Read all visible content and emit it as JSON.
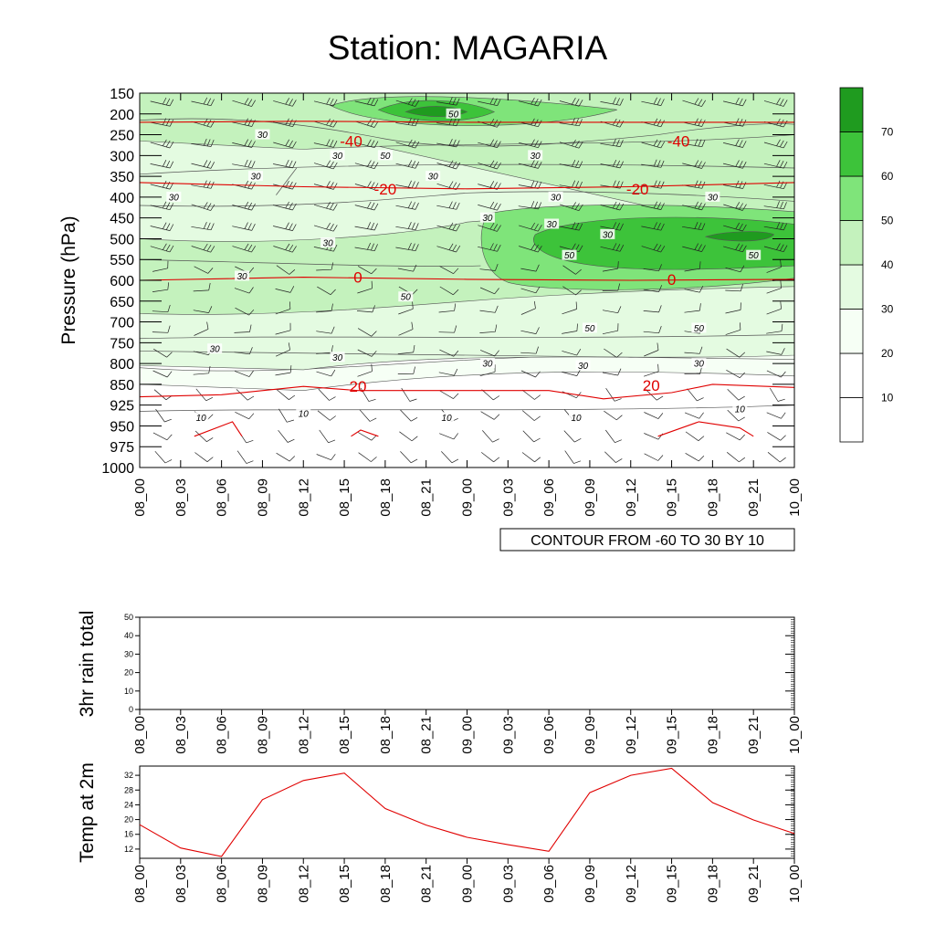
{
  "title": "Station: MAGARIA",
  "colors": {
    "temperature_line": "#e00000",
    "wind_barb": "#222222",
    "contour_line": "#555555",
    "shading": [
      "#ffffff",
      "#f6fff5",
      "#e4fbe1",
      "#c4f2bd",
      "#7fe47a",
      "#3dc33a",
      "#1f9b1f"
    ]
  },
  "chart_data": [
    {
      "type": "heatmap",
      "name": "cross-section",
      "title": "Station: MAGARIA",
      "ylabel": "Pressure (hPa)",
      "xlabel": "",
      "ylim": [
        1000,
        150
      ],
      "y_ticks": [
        "150",
        "200",
        "250",
        "300",
        "350",
        "400",
        "450",
        "500",
        "550",
        "600",
        "650",
        "700",
        "750",
        "800",
        "850",
        "925",
        "950",
        "975",
        "1000"
      ],
      "x_ticks": [
        "08_00",
        "08_03",
        "08_06",
        "08_09",
        "08_12",
        "08_15",
        "08_18",
        "08_21",
        "09_00",
        "09_03",
        "09_06",
        "09_09",
        "09_12",
        "09_15",
        "09_18",
        "09_21",
        "10_00"
      ],
      "shading_levels": [
        10,
        20,
        30,
        40,
        50,
        60,
        70
      ],
      "colorbar_labels": [
        "10",
        "20",
        "30",
        "40",
        "50",
        "60",
        "70"
      ],
      "wind_speed_contour_labels": [
        {
          "text": "30",
          "time": 9.0,
          "level": 2
        },
        {
          "text": "50",
          "time": 18.0,
          "level": 3
        },
        {
          "text": "50",
          "time": 23.0,
          "level": 1
        },
        {
          "text": "30",
          "time": 2.5,
          "level": 5
        },
        {
          "text": "30",
          "time": 8.5,
          "level": 4
        },
        {
          "text": "30",
          "time": 14.5,
          "level": 3
        },
        {
          "text": "30",
          "time": 21.5,
          "level": 4
        },
        {
          "text": "30",
          "time": 30.5,
          "level": 5
        },
        {
          "text": "30",
          "time": 29.0,
          "level": 3
        },
        {
          "text": "30",
          "time": 42.0,
          "level": 5
        },
        {
          "text": "30",
          "time": 25.5,
          "level": 6
        },
        {
          "text": "30",
          "time": 30.2,
          "level": 6.3
        },
        {
          "text": "30",
          "time": 34.3,
          "level": 6.8
        },
        {
          "text": "30",
          "time": 13.8,
          "level": 7.2
        },
        {
          "text": "50",
          "time": 31.5,
          "level": 7.8
        },
        {
          "text": "50",
          "time": 45.0,
          "level": 7.8
        },
        {
          "text": "30",
          "time": 7.5,
          "level": 8.8
        },
        {
          "text": "50",
          "time": 19.5,
          "level": 9.8
        },
        {
          "text": "50",
          "time": 33.0,
          "level": 11.3
        },
        {
          "text": "50",
          "time": 41.0,
          "level": 11.3
        },
        {
          "text": "30",
          "time": 5.5,
          "level": 12.3
        },
        {
          "text": "30",
          "time": 14.5,
          "level": 12.7
        },
        {
          "text": "30",
          "time": 25.5,
          "level": 13.0
        },
        {
          "text": "30",
          "time": 32.5,
          "level": 13.1
        },
        {
          "text": "30",
          "time": 41.0,
          "level": 13.0
        },
        {
          "text": "10",
          "time": 4.5,
          "level": 15.6
        },
        {
          "text": "10",
          "time": 12.0,
          "level": 15.4
        },
        {
          "text": "10",
          "time": 22.5,
          "level": 15.6
        },
        {
          "text": "10",
          "time": 32.0,
          "level": 15.6
        },
        {
          "text": "10",
          "time": 44.0,
          "level": 15.2
        }
      ],
      "temperature_contours": [
        {
          "value": "-40",
          "points": [
            [
              0,
              1.4
            ],
            [
              12,
              1.35
            ],
            [
              24,
              1.4
            ],
            [
              36,
              1.4
            ],
            [
              48,
              1.4
            ]
          ],
          "labels": [
            {
              "time": 15.5,
              "level": 2.3
            },
            {
              "time": 39.5,
              "level": 2.3
            }
          ]
        },
        {
          "value": "-20",
          "points": [
            [
              0,
              4.3
            ],
            [
              12,
              4.5
            ],
            [
              24,
              4.6
            ],
            [
              36,
              4.5
            ],
            [
              48,
              4.3
            ]
          ],
          "labels": [
            {
              "time": 18.0,
              "level": 4.6
            },
            {
              "time": 36.5,
              "level": 4.6
            }
          ]
        },
        {
          "value": "0",
          "points": [
            [
              0,
              9.0
            ],
            [
              12,
              8.85
            ],
            [
              24,
              8.95
            ],
            [
              36,
              9.0
            ],
            [
              48,
              8.95
            ]
          ],
          "labels": [
            {
              "time": 16.0,
              "level": 8.85
            },
            {
              "time": 39.0,
              "level": 8.95
            }
          ]
        },
        {
          "value": "20",
          "points": [
            [
              0,
              14.6
            ],
            [
              6,
              14.5
            ],
            [
              12,
              14.1
            ],
            [
              16,
              14.3
            ],
            [
              24,
              14.3
            ],
            [
              30,
              14.3
            ],
            [
              34,
              14.7
            ],
            [
              39,
              14.4
            ],
            [
              42,
              14.0
            ],
            [
              48,
              14.15
            ]
          ],
          "labels": [
            {
              "time": 16.0,
              "level": 14.1
            },
            {
              "time": 37.5,
              "level": 14.05
            }
          ]
        }
      ],
      "info_label": "CONTOUR FROM -60 TO 30 BY 10"
    },
    {
      "type": "line",
      "name": "rain",
      "ylabel": "3hr rain total",
      "ylim": [
        0,
        50
      ],
      "y_ticks": [
        "0",
        "10",
        "20",
        "30",
        "40",
        "50"
      ],
      "x": [
        "08_00",
        "08_03",
        "08_06",
        "08_09",
        "08_12",
        "08_15",
        "08_18",
        "08_21",
        "09_00",
        "09_03",
        "09_06",
        "09_09",
        "09_12",
        "09_15",
        "09_18",
        "09_21",
        "10_00"
      ],
      "values": [
        0,
        0,
        0,
        0,
        0,
        0,
        0,
        0,
        0,
        0,
        0,
        0,
        0,
        0,
        0,
        0,
        0
      ]
    },
    {
      "type": "line",
      "name": "temp2m",
      "ylabel": "Temp at 2m",
      "ylim": [
        9.5,
        34.5
      ],
      "y_ticks": [
        "12",
        "16",
        "20",
        "24",
        "28",
        "32"
      ],
      "x": [
        "08_00",
        "08_03",
        "08_06",
        "08_09",
        "08_12",
        "08_15",
        "08_18",
        "08_21",
        "09_00",
        "09_03",
        "09_06",
        "09_09",
        "09_12",
        "09_15",
        "09_18",
        "09_21",
        "10_00"
      ],
      "values": [
        18.6,
        12.3,
        10.0,
        25.4,
        30.6,
        32.6,
        23.0,
        18.5,
        15.2,
        13.2,
        11.4,
        27.3,
        32.0,
        33.9,
        24.6,
        19.9,
        16.2
      ]
    }
  ]
}
